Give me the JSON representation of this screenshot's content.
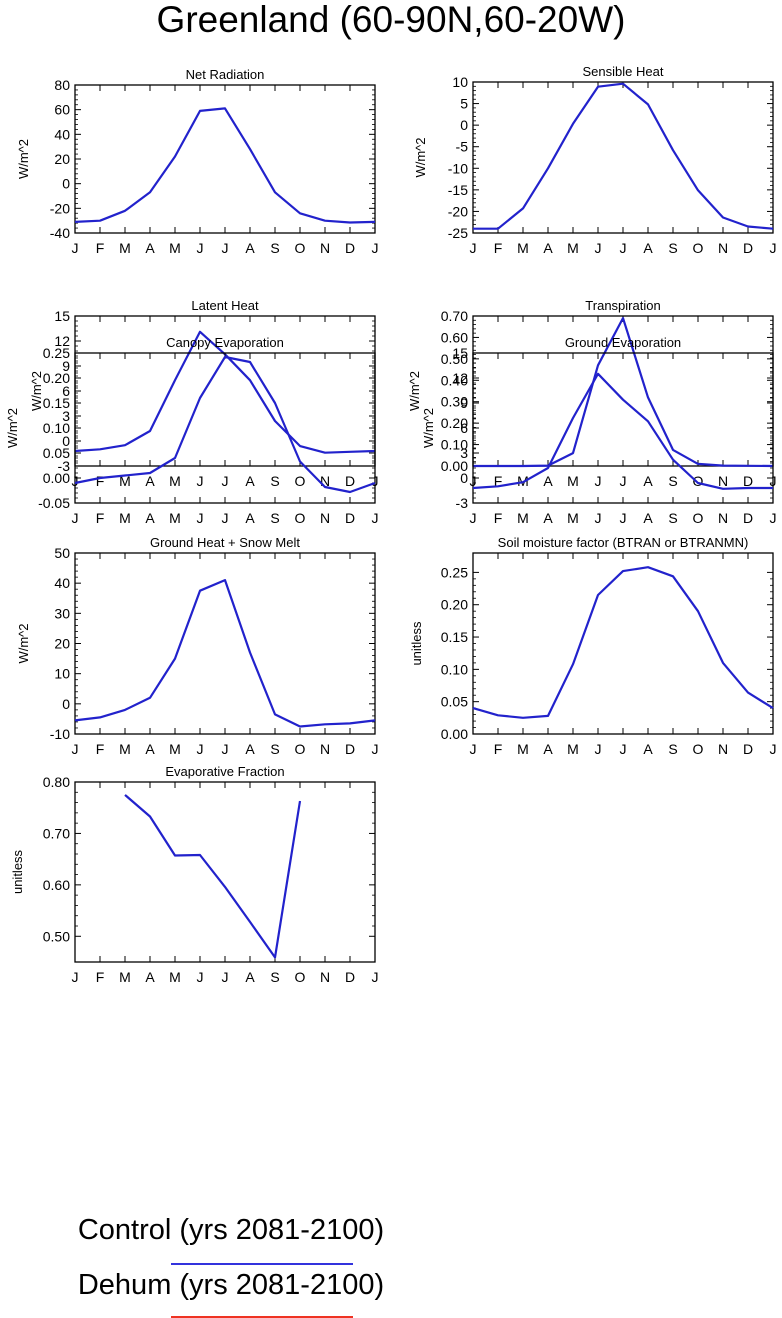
{
  "title": "Greenland (60-90N,60-20W)",
  "colors": {
    "control": "#3333dd",
    "dehum": "#ee3322",
    "overlay": "#2222cc"
  },
  "months": [
    "J",
    "F",
    "M",
    "A",
    "M",
    "J",
    "J",
    "A",
    "S",
    "O",
    "N",
    "D",
    "J"
  ],
  "legend": [
    {
      "label": "Control (yrs 2081-2100)",
      "color": "#3333dd"
    },
    {
      "label": "Dehum (yrs 2081-2100)",
      "color": "#ee3322"
    }
  ],
  "chart_data": [
    {
      "type": "line",
      "title": "Net Radiation",
      "ylabel": "W/m^2",
      "ylim": [
        -40,
        80
      ],
      "yticks": [
        -40,
        -20,
        0,
        20,
        40,
        60,
        80
      ],
      "ytick_labels": [
        "-40",
        "-20",
        "0",
        "20",
        "40",
        "60",
        "80"
      ],
      "categories": [
        "J",
        "F",
        "M",
        "A",
        "M",
        "J",
        "J",
        "A",
        "S",
        "O",
        "N",
        "D",
        "J"
      ],
      "series": [
        {
          "values": [
            -31,
            -30,
            -22,
            -7,
            22,
            59,
            61,
            28,
            -7,
            -24,
            -30,
            -31.5,
            -31
          ]
        }
      ]
    },
    {
      "type": "line",
      "title": "Sensible Heat",
      "ylabel": "W/m^2",
      "ylim": [
        -25,
        10
      ],
      "yticks": [
        -25,
        -20,
        -15,
        -10,
        -5,
        0,
        5,
        10
      ],
      "ytick_labels": [
        "-25",
        "-20",
        "-15",
        "-10",
        "-5",
        "0",
        "5",
        "10"
      ],
      "categories": [
        "J",
        "F",
        "M",
        "A",
        "M",
        "J",
        "J",
        "A",
        "S",
        "O",
        "N",
        "D",
        "J"
      ],
      "series": [
        {
          "values": [
            -24,
            -24,
            -19.3,
            -10,
            0.3,
            8.9,
            9.6,
            4.8,
            -5.8,
            -15.1,
            -21.4,
            -23.5,
            -24
          ]
        }
      ]
    },
    {
      "type": "line",
      "title": "Latent Heat",
      "ylabel": "W/m^2",
      "ylim": [
        -3,
        15
      ],
      "yticks": [
        -3,
        0,
        3,
        6,
        9,
        12,
        15
      ],
      "ytick_labels": [
        "-3",
        "0",
        "3",
        "6",
        "9",
        "12",
        "15"
      ],
      "categories": [
        "J",
        "F",
        "M",
        "A",
        "M",
        "J",
        "J",
        "A",
        "S",
        "O",
        "N",
        "D",
        "J"
      ],
      "series": [
        {
          "values": [
            -1.2,
            -1,
            -0.5,
            1.2,
            7.3,
            13.1,
            10.4,
            7.3,
            2.4,
            -0.6,
            -1.4,
            -1.3,
            -1.2
          ]
        }
      ]
    },
    {
      "type": "line",
      "title": "Transpiration",
      "ylabel": "W/m^2",
      "ylim": [
        0,
        0.7
      ],
      "yticks": [
        0,
        0.1,
        0.2,
        0.3,
        0.4,
        0.5,
        0.6,
        0.7
      ],
      "ytick_labels": [
        "0.00",
        "0.10",
        "0.20",
        "0.30",
        "0.40",
        "0.50",
        "0.60",
        "0.70"
      ],
      "categories": [
        "J",
        "F",
        "M",
        "A",
        "M",
        "J",
        "J",
        "A",
        "S",
        "O",
        "N",
        "D",
        "J"
      ],
      "series": [
        {
          "values": [
            0,
            0,
            0,
            0.002,
            0.06,
            0.47,
            0.69,
            0.32,
            0.075,
            0.01,
            0.002,
            0.001,
            0
          ]
        }
      ]
    },
    {
      "type": "line",
      "title": "Canopy Evaporation",
      "ylabel": "W/m^2",
      "ylim": [
        -0.05,
        0.25
      ],
      "yticks": [
        -0.05,
        0,
        0.05,
        0.1,
        0.15,
        0.2,
        0.25
      ],
      "ytick_labels": [
        "-0.05",
        "0.00",
        "0.05",
        "0.10",
        "0.15",
        "0.20",
        "0.25"
      ],
      "categories": [
        "J",
        "F",
        "M",
        "A",
        "M",
        "J",
        "J",
        "A",
        "S",
        "O",
        "N",
        "D",
        "J"
      ],
      "series": [
        {
          "values": [
            -0.01,
            0,
            0.005,
            0.01,
            0.04,
            0.16,
            0.242,
            0.232,
            0.15,
            0.033,
            -0.018,
            -0.028,
            -0.01
          ]
        }
      ]
    },
    {
      "type": "line",
      "title": "Ground Evaporation",
      "ylabel": "W/m^2",
      "ylim": [
        -3,
        15
      ],
      "yticks": [
        -3,
        0,
        3,
        6,
        9,
        12,
        15
      ],
      "ytick_labels": [
        "-3",
        "0",
        "3",
        "6",
        "9",
        "12",
        "15"
      ],
      "categories": [
        "J",
        "F",
        "M",
        "A",
        "M",
        "J",
        "J",
        "A",
        "S",
        "O",
        "N",
        "D",
        "J"
      ],
      "series": [
        {
          "values": [
            -1.2,
            -1,
            -0.5,
            1.2,
            7.2,
            12.5,
            9.4,
            6.8,
            2.2,
            -0.6,
            -1.3,
            -1.2,
            -1.2
          ]
        }
      ]
    },
    {
      "type": "line",
      "title": "Ground Heat + Snow Melt",
      "ylabel": "W/m^2",
      "ylim": [
        -10,
        50
      ],
      "yticks": [
        -10,
        0,
        10,
        20,
        30,
        40,
        50
      ],
      "ytick_labels": [
        "-10",
        "0",
        "10",
        "20",
        "30",
        "40",
        "50"
      ],
      "categories": [
        "J",
        "F",
        "M",
        "A",
        "M",
        "J",
        "J",
        "A",
        "S",
        "O",
        "N",
        "D",
        "J"
      ],
      "series": [
        {
          "values": [
            -5.5,
            -4.5,
            -2,
            2,
            15,
            37.5,
            41,
            17,
            -3.5,
            -7.5,
            -6.8,
            -6.5,
            -5.5
          ]
        }
      ]
    },
    {
      "type": "line",
      "title": "Soil moisture factor (BTRAN or BTRANMN)",
      "ylabel": "unitless",
      "ylim": [
        0,
        0.28
      ],
      "yticks": [
        0,
        0.05,
        0.1,
        0.15,
        0.2,
        0.25
      ],
      "ytick_labels": [
        "0.00",
        "0.05",
        "0.10",
        "0.15",
        "0.20",
        "0.25"
      ],
      "categories": [
        "J",
        "F",
        "M",
        "A",
        "M",
        "J",
        "J",
        "A",
        "S",
        "O",
        "N",
        "D",
        "J"
      ],
      "series": [
        {
          "values": [
            0.04,
            0.029,
            0.025,
            0.028,
            0.108,
            0.215,
            0.252,
            0.258,
            0.244,
            0.19,
            0.11,
            0.064,
            0.04
          ]
        }
      ]
    },
    {
      "type": "line",
      "title": "Evaporative Fraction",
      "ylabel": "unitless",
      "ylim": [
        0.45,
        0.8
      ],
      "yticks": [
        0.5,
        0.6,
        0.7,
        0.8
      ],
      "ytick_labels": [
        "0.50",
        "0.60",
        "0.70",
        "0.80"
      ],
      "categories": [
        "J",
        "F",
        "M",
        "A",
        "M",
        "J",
        "J",
        "A",
        "S",
        "O",
        "N",
        "D",
        "J"
      ],
      "series": [
        {
          "values": [
            null,
            null,
            0.775,
            0.733,
            0.657,
            0.658,
            0.596,
            0.528,
            0.459,
            0.763,
            null,
            null,
            null
          ]
        }
      ]
    }
  ]
}
